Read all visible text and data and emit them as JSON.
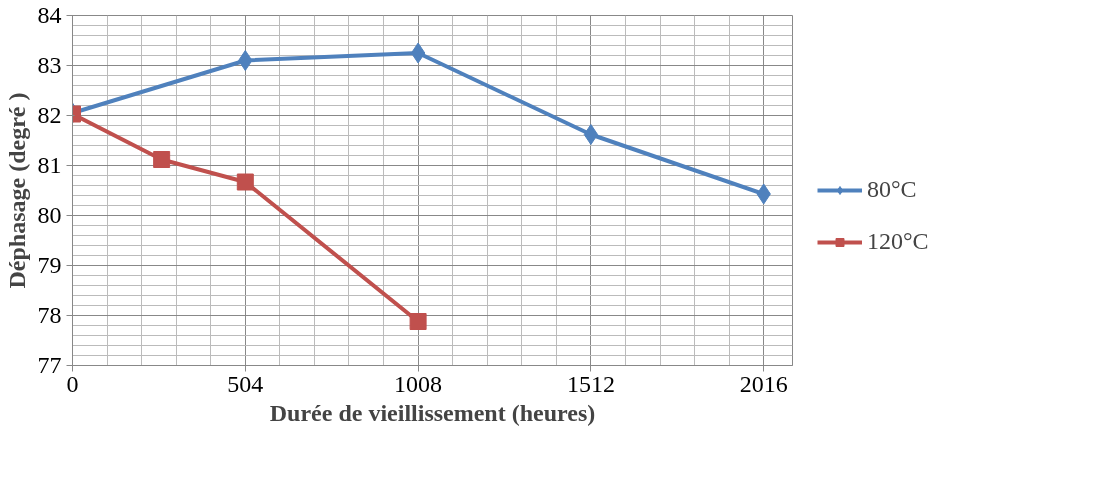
{
  "chart_data": {
    "type": "line",
    "xlabel": "Durée de vieillissement (heures)",
    "ylabel": "Déphasage (degré )",
    "xlim": [
      0,
      2100
    ],
    "ylim": [
      77,
      84
    ],
    "xticks": [
      0,
      504,
      1008,
      1512,
      2016
    ],
    "yticks": [
      77,
      78,
      79,
      80,
      81,
      82,
      83,
      84
    ],
    "grid": true,
    "legend": "right",
    "line_style": "solid",
    "series": [
      {
        "name": "80°C",
        "color": "#4f81bd",
        "marker": "diamond",
        "x": [
          0,
          504,
          1008,
          1512,
          2016
        ],
        "values": [
          82.05,
          83.1,
          83.25,
          81.62,
          80.43
        ]
      },
      {
        "name": "120°C",
        "color": "#c0504d",
        "marker": "square",
        "x": [
          0,
          260,
          504,
          1008
        ],
        "values": [
          82.03,
          81.12,
          80.67,
          77.88
        ]
      }
    ]
  }
}
